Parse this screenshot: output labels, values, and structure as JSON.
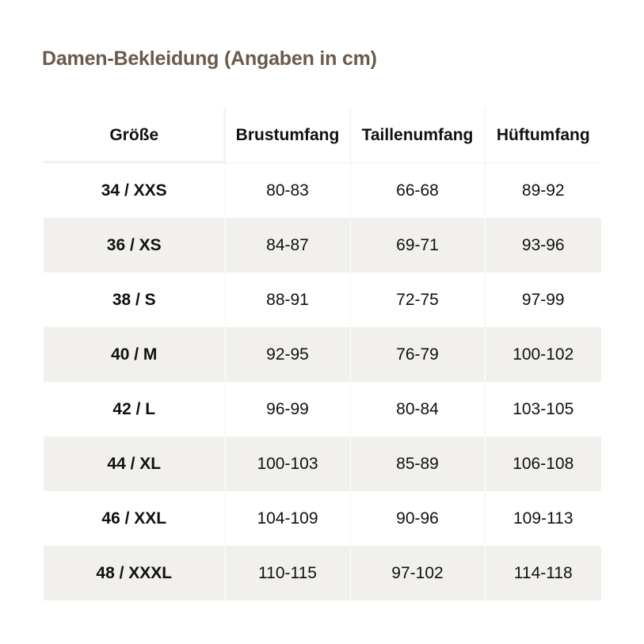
{
  "title": "Damen-Bekleidung (Angaben in cm)",
  "colors": {
    "title": "#6b5a4a",
    "stripe": "#f1f0ec",
    "text": "#111111"
  },
  "table": {
    "headers": [
      "Größe",
      "Brustumfang",
      "Taillenumfang",
      "Hüftumfang"
    ],
    "rows": [
      [
        "34 / XXS",
        "80-83",
        "66-68",
        "89-92"
      ],
      [
        "36 / XS",
        "84-87",
        "69-71",
        "93-96"
      ],
      [
        "38 / S",
        "88-91",
        "72-75",
        "97-99"
      ],
      [
        "40 / M",
        "92-95",
        "76-79",
        "100-102"
      ],
      [
        "42 / L",
        "96-99",
        "80-84",
        "103-105"
      ],
      [
        "44 / XL",
        "100-103",
        "85-89",
        "106-108"
      ],
      [
        "46 / XXL",
        "104-109",
        "90-96",
        "109-113"
      ],
      [
        "48 / XXXL",
        "110-115",
        "97-102",
        "114-118"
      ]
    ]
  }
}
